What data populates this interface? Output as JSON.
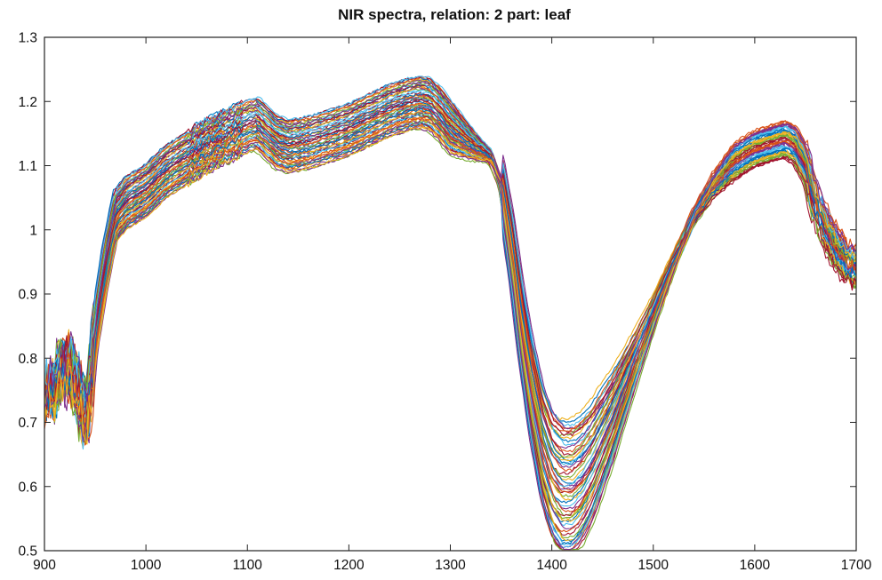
{
  "chart_data": {
    "type": "line",
    "title": "NIR spectra, relation: 2 part: leaf",
    "xlabel": "",
    "ylabel": "",
    "xlim": [
      900,
      1700
    ],
    "ylim": [
      0.5,
      1.3
    ],
    "xticks": [
      900,
      1000,
      1100,
      1200,
      1300,
      1400,
      1500,
      1600,
      1700
    ],
    "xtick_labels": [
      "900",
      "1000",
      "1100",
      "1200",
      "1300",
      "1400",
      "1500",
      "1600",
      "1700"
    ],
    "yticks": [
      0.5,
      0.6,
      0.7,
      0.8,
      0.9,
      1.0,
      1.1,
      1.2,
      1.3
    ],
    "ytick_labels": [
      "0.5",
      "0.6",
      "0.7",
      "0.8",
      "0.9",
      "1",
      "1.1",
      "1.2",
      "1.3"
    ],
    "grid": false,
    "legend": "none",
    "colors": [
      "#0072BD",
      "#D95319",
      "#EDB120",
      "#7E2F8E",
      "#77AC30",
      "#4DBEEE",
      "#A2142F"
    ],
    "reference_spectrum": {
      "x": [
        900,
        905,
        910,
        915,
        920,
        925,
        930,
        935,
        940,
        945,
        950,
        960,
        970,
        980,
        1000,
        1020,
        1040,
        1060,
        1080,
        1100,
        1110,
        1120,
        1130,
        1140,
        1160,
        1180,
        1200,
        1220,
        1240,
        1260,
        1270,
        1280,
        1290,
        1300,
        1320,
        1340,
        1350,
        1360,
        1370,
        1380,
        1390,
        1400,
        1410,
        1420,
        1430,
        1440,
        1460,
        1480,
        1500,
        1520,
        1540,
        1560,
        1580,
        1600,
        1620,
        1630,
        1640,
        1650,
        1660,
        1670,
        1680,
        1690,
        1700
      ],
      "y": [
        0.73,
        0.76,
        0.74,
        0.79,
        0.77,
        0.8,
        0.76,
        0.74,
        0.71,
        0.75,
        0.84,
        0.94,
        1.02,
        1.04,
        1.06,
        1.09,
        1.11,
        1.13,
        1.145,
        1.16,
        1.165,
        1.15,
        1.135,
        1.13,
        1.135,
        1.145,
        1.155,
        1.17,
        1.185,
        1.195,
        1.198,
        1.195,
        1.18,
        1.16,
        1.135,
        1.115,
        1.07,
        0.97,
        0.85,
        0.75,
        0.67,
        0.62,
        0.6,
        0.6,
        0.615,
        0.64,
        0.71,
        0.79,
        0.87,
        0.95,
        1.02,
        1.07,
        1.105,
        1.125,
        1.135,
        1.14,
        1.13,
        1.1,
        1.04,
        1.0,
        0.97,
        0.95,
        0.94
      ]
    },
    "series_count": 60
  }
}
